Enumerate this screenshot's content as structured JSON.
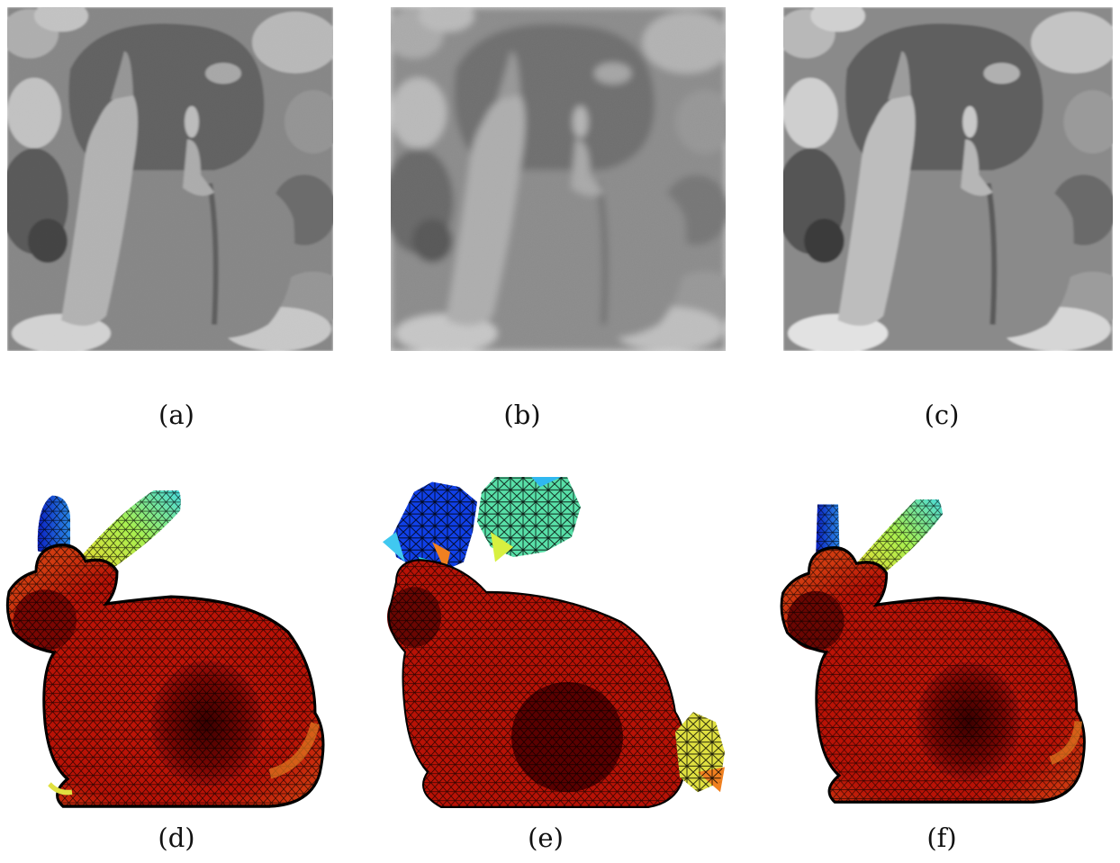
{
  "figure": {
    "panels": [
      {
        "id": "a",
        "caption": "(a)",
        "content": "grayscale peppers photograph (original)"
      },
      {
        "id": "b",
        "caption": "(b)",
        "content": "grayscale peppers photograph, blurred and noisy"
      },
      {
        "id": "c",
        "caption": "(c)",
        "content": "grayscale peppers photograph, restored (piecewise-smooth)"
      },
      {
        "id": "d",
        "caption": "(d)",
        "content": "triangle mesh of a bunny, colored (original)"
      },
      {
        "id": "e",
        "caption": "(e)",
        "content": "triangle mesh of a bunny, noisy"
      },
      {
        "id": "f",
        "caption": "(f)",
        "content": "triangle mesh of a bunny, denoised"
      }
    ],
    "colors": {
      "mesh_body": "#c0150a",
      "mesh_shadow": "#5a0000",
      "mesh_edge": "#000000",
      "ear_blue": "#0a2fd0",
      "ear_cyan": "#35d5e0",
      "ear_yellow": "#e0f040",
      "orange": "#f08020",
      "gray_bg": "#6e6e6e"
    }
  }
}
